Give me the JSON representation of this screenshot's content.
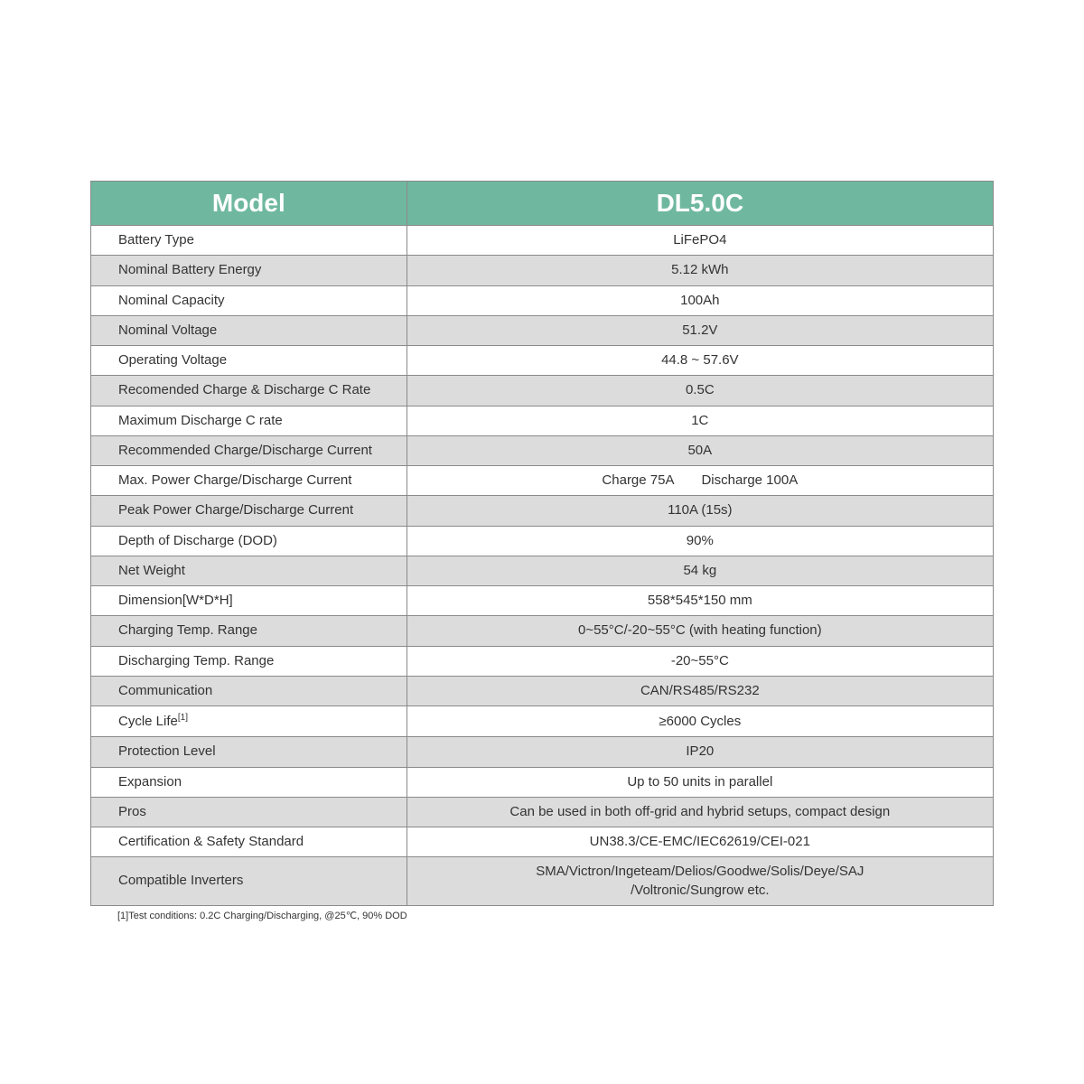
{
  "table": {
    "header": {
      "left": "Model",
      "right": "DL5.0C"
    },
    "header_bg": "#6fb89f",
    "header_fg": "#ffffff",
    "row_alt_bg": "#dcdcdc",
    "row_plain_bg": "#ffffff",
    "border_color": "#8a8a8a",
    "label_fontsize": 15,
    "header_fontsize": 28,
    "rows": [
      {
        "label": "Battery Type",
        "value": "LiFePO4",
        "alt": false
      },
      {
        "label": "Nominal Battery Energy",
        "value": "5.12 kWh",
        "alt": true
      },
      {
        "label": "Nominal Capacity",
        "value": "100Ah",
        "alt": false
      },
      {
        "label": "Nominal Voltage",
        "value": "51.2V",
        "alt": true
      },
      {
        "label": "Operating Voltage",
        "value": "44.8 ~ 57.6V",
        "alt": false
      },
      {
        "label": "Recomended Charge & Discharge C Rate",
        "value": "0.5C",
        "alt": true
      },
      {
        "label": "Maximum Discharge C rate",
        "value": "1C",
        "alt": false
      },
      {
        "label": "Recommended Charge/Discharge Current",
        "value": "50A",
        "alt": true
      },
      {
        "label": "Max. Power Charge/Discharge Current",
        "value": "Charge 75A  Discharge 100A",
        "alt": false
      },
      {
        "label": "Peak Power Charge/Discharge Current",
        "value": "110A (15s)",
        "alt": true
      },
      {
        "label": "Depth of Discharge (DOD)",
        "value": "90%",
        "alt": false
      },
      {
        "label": "Net Weight",
        "value": "54 kg",
        "alt": true
      },
      {
        "label": "Dimension[W*D*H]",
        "value": "558*545*150 mm",
        "alt": false
      },
      {
        "label": "Charging Temp. Range",
        "value": "0~55°C/-20~55°C (with heating function)",
        "alt": true
      },
      {
        "label": "Discharging Temp. Range",
        "value": "-20~55°C",
        "alt": false
      },
      {
        "label": "Communication",
        "value": "CAN/RS485/RS232",
        "alt": true
      },
      {
        "label": "Cycle Life",
        "sup": "[1]",
        "value": "≥6000 Cycles",
        "alt": false
      },
      {
        "label": "Protection Level",
        "value": "IP20",
        "alt": true
      },
      {
        "label": "Expansion",
        "value": "Up to 50 units in parallel",
        "alt": false
      },
      {
        "label": "Pros",
        "value": "Can be used in both off-grid and hybrid setups, compact design",
        "alt": true
      },
      {
        "label": "Certification & Safety Standard",
        "value": "UN38.3/CE-EMC/IEC62619/CEI-021",
        "alt": false
      },
      {
        "label": "Compatible Inverters",
        "value": "SMA/Victron/Ingeteam/Delios/Goodwe/Solis/Deye/SAJ\n/Voltronic/Sungrow etc.",
        "alt": true
      }
    ],
    "footnote": "[1]Test conditions: 0.2C Charging/Discharging, @25℃, 90% DOD"
  }
}
